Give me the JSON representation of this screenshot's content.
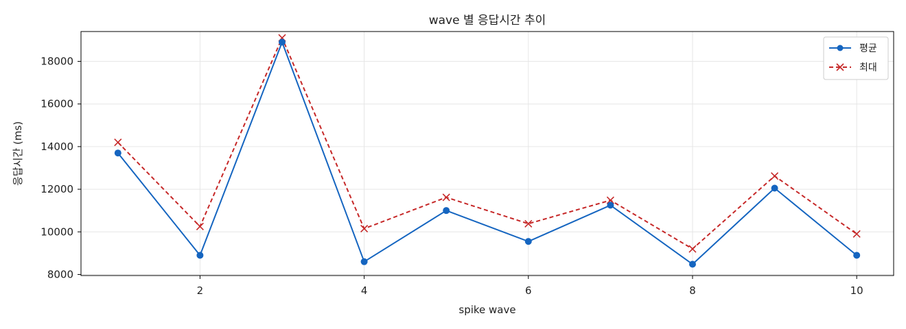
{
  "chart_data": {
    "type": "line",
    "title": "wave 별 응답시간 추이",
    "xlabel": "spike wave",
    "ylabel": "응답시간 (ms)",
    "x": [
      1,
      2,
      3,
      4,
      5,
      6,
      7,
      8,
      9,
      10
    ],
    "xlim": [
      0.55,
      10.45
    ],
    "ylim": [
      7950,
      19400
    ],
    "xticks": [
      2,
      4,
      6,
      8,
      10
    ],
    "yticks": [
      8000,
      10000,
      12000,
      14000,
      16000,
      18000
    ],
    "grid": true,
    "legend_position": "top-right",
    "series": [
      {
        "name": "평균",
        "color": "#1565c0",
        "line": "solid",
        "marker": "circle",
        "values": [
          13700,
          8900,
          18900,
          8600,
          11000,
          9550,
          11250,
          8480,
          12050,
          8900
        ]
      },
      {
        "name": "최대",
        "color": "#c62828",
        "line": "dashed",
        "marker": "x",
        "values": [
          14200,
          10250,
          19100,
          10150,
          11620,
          10380,
          11480,
          9200,
          12620,
          9900
        ]
      }
    ]
  }
}
